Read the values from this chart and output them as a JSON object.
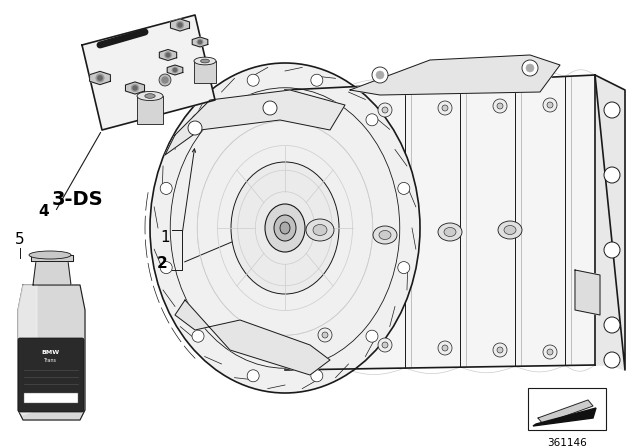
{
  "background_color": "#ffffff",
  "part_number": "361146",
  "label_3ds": "3-DS",
  "fig_width": 6.4,
  "fig_height": 4.48,
  "dark": "#1a1a1a",
  "lgray": "#aaaaaa",
  "mgray": "#cccccc",
  "lw_main": 1.2,
  "lw_thin": 0.7,
  "lw_med": 0.9
}
